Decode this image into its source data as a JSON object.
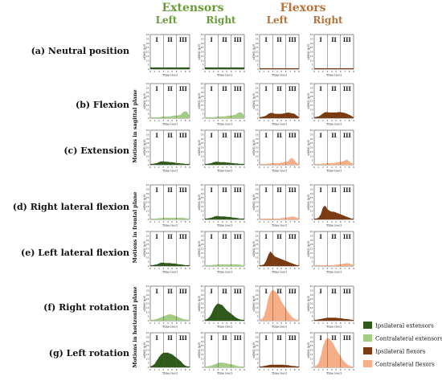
{
  "header": {
    "extensors": "Extensors",
    "flexors": "Flexors",
    "ext_color": "#6a9a3a",
    "flex_color": "#b5733a",
    "columns": [
      "Left",
      "Right",
      "Left",
      "Right"
    ]
  },
  "planes": [
    "Motions in sagittal plane",
    "Motions in frontal plane",
    "Motions in horizontal plane"
  ],
  "rows": [
    "(a) Neutral position",
    "(b) Flexion",
    "(c) Extension",
    "(d) Right lateral flexion",
    "(e) Left lateral flexion",
    "(f) Right rotation",
    "(g) Left rotation"
  ],
  "legend": [
    {
      "label": "Ipsilateral extensors",
      "color": "#2f5a1c"
    },
    {
      "label": "Contralateral extensors",
      "color": "#a3cc84"
    },
    {
      "label": "Ipsilateral flexors",
      "color": "#7a3a12"
    },
    {
      "label": "Contralateral flexors",
      "color": "#f5ae88"
    }
  ],
  "chart_data": {
    "type": "area",
    "ylabel": "sEMG (μV)",
    "xlabel": "Time (sec)",
    "ylim": [
      0,
      40
    ],
    "xlim": [
      0,
      9
    ],
    "x_ticks": [
      "0",
      "1",
      "2",
      "3",
      "4",
      "5",
      "6",
      "7",
      "8",
      "9"
    ],
    "y_ticks": [
      "40",
      "35",
      "30",
      "25",
      "20",
      "15",
      "10",
      "5",
      "0"
    ],
    "phases": [
      "I",
      "II",
      "III"
    ],
    "phase_bounds": [
      3,
      6
    ],
    "x": [
      0,
      0.5,
      1,
      1.5,
      2,
      2.5,
      3,
      3.5,
      4,
      4.5,
      5,
      5.5,
      6,
      6.5,
      7,
      7.5,
      8,
      8.5,
      9
    ],
    "panels": [
      {
        "row": 0,
        "col": 0,
        "kind": "ie",
        "values": [
          2,
          2,
          2,
          2,
          2,
          2,
          2,
          2,
          2,
          2,
          2,
          2,
          2,
          2,
          2,
          2,
          2,
          2,
          2
        ]
      },
      {
        "row": 0,
        "col": 1,
        "kind": "ie",
        "values": [
          2,
          2,
          2,
          2,
          2,
          2,
          2,
          2,
          2,
          2,
          2,
          2,
          2,
          2,
          2,
          2,
          2,
          2,
          2
        ]
      },
      {
        "row": 0,
        "col": 2,
        "kind": "if",
        "values": [
          1,
          1,
          1,
          1,
          1,
          1,
          1,
          1,
          1,
          1,
          1,
          1,
          1,
          1,
          1,
          1,
          1,
          1,
          1
        ]
      },
      {
        "row": 0,
        "col": 3,
        "kind": "if",
        "values": [
          1,
          1,
          1,
          1,
          1,
          1,
          1,
          1,
          1,
          1,
          1,
          1,
          1,
          1,
          1,
          1,
          1,
          1,
          1
        ]
      },
      {
        "row": 1,
        "col": 0,
        "kind": "ce",
        "values": [
          1,
          1,
          1,
          1,
          1,
          1.5,
          2,
          2,
          2,
          2,
          2.5,
          3,
          3,
          3.5,
          4,
          7,
          8,
          7,
          2
        ]
      },
      {
        "row": 1,
        "col": 1,
        "kind": "ce",
        "values": [
          1,
          1,
          1,
          1,
          1,
          1.5,
          2,
          2,
          2,
          2,
          2.5,
          3,
          3,
          3.5,
          4,
          6,
          7,
          6,
          2
        ]
      },
      {
        "row": 1,
        "col": 2,
        "kind": "if",
        "values": [
          1,
          1.5,
          2,
          3,
          5,
          6,
          6,
          5,
          5,
          5,
          5,
          5.5,
          6,
          6.5,
          6,
          5.5,
          5,
          3,
          1
        ]
      },
      {
        "row": 1,
        "col": 3,
        "kind": "if",
        "values": [
          1,
          1.5,
          2,
          3.5,
          5.5,
          7,
          7,
          6.5,
          6.5,
          6.5,
          6.5,
          7,
          7,
          6.5,
          6,
          5,
          4,
          2.5,
          1
        ]
      },
      {
        "row": 2,
        "col": 0,
        "kind": "ie",
        "values": [
          1,
          1,
          1.5,
          2,
          3,
          4,
          4,
          3.5,
          3.5,
          3,
          3,
          2.5,
          2,
          2,
          1.5,
          1.5,
          1,
          1,
          1
        ]
      },
      {
        "row": 2,
        "col": 1,
        "kind": "ie",
        "values": [
          1,
          1,
          1.5,
          2,
          3,
          3.5,
          3.5,
          3,
          3,
          3,
          2.5,
          2.5,
          2,
          2,
          1.5,
          1.5,
          1,
          1,
          1
        ]
      },
      {
        "row": 2,
        "col": 2,
        "kind": "cf",
        "values": [
          1,
          1,
          1,
          1,
          1.5,
          1.5,
          2,
          2,
          2,
          2,
          2.5,
          3,
          3.5,
          4,
          7,
          8,
          5,
          2,
          1
        ]
      },
      {
        "row": 2,
        "col": 3,
        "kind": "cf",
        "values": [
          1,
          1,
          1,
          1,
          1.5,
          1.5,
          2,
          2,
          2,
          2,
          2.5,
          3,
          3.5,
          4,
          5,
          6,
          4,
          2,
          1
        ]
      },
      {
        "row": 3,
        "col": 0,
        "kind": "ce",
        "values": [
          1,
          1,
          1,
          1,
          1.5,
          1.5,
          2,
          2,
          2,
          2,
          2,
          2,
          2,
          2,
          2,
          2,
          1.5,
          1,
          1
        ]
      },
      {
        "row": 3,
        "col": 1,
        "kind": "ie",
        "values": [
          1,
          1,
          1.5,
          2,
          3,
          4,
          4,
          3.5,
          3.5,
          3.5,
          3,
          3,
          2.5,
          2,
          2,
          1.5,
          1,
          1,
          1
        ]
      },
      {
        "row": 3,
        "col": 2,
        "kind": "cf",
        "values": [
          1,
          1,
          1,
          1,
          1,
          1,
          1,
          1,
          1,
          1,
          1.5,
          2,
          2,
          2.5,
          3,
          3.5,
          3,
          2,
          1
        ]
      },
      {
        "row": 3,
        "col": 3,
        "kind": "if",
        "values": [
          1,
          1,
          2,
          6,
          14,
          16,
          12,
          10,
          9,
          9,
          8,
          7,
          6,
          5,
          4,
          3,
          2,
          1,
          1
        ]
      },
      {
        "row": 4,
        "col": 0,
        "kind": "ie",
        "values": [
          1,
          1,
          1.5,
          2,
          3,
          4,
          4,
          3.5,
          3.5,
          3.5,
          3,
          3,
          2.5,
          2,
          2,
          1.5,
          1,
          1,
          1
        ]
      },
      {
        "row": 4,
        "col": 1,
        "kind": "ce",
        "values": [
          1,
          1,
          1,
          1,
          1.5,
          1.5,
          2,
          2,
          2,
          2,
          2,
          2,
          2,
          2,
          2,
          2,
          1.5,
          1,
          1
        ]
      },
      {
        "row": 4,
        "col": 2,
        "kind": "if",
        "values": [
          1,
          1,
          2,
          6,
          13,
          17,
          14,
          11,
          10,
          9,
          8,
          7,
          6,
          5,
          4,
          3,
          2,
          1,
          1
        ]
      },
      {
        "row": 4,
        "col": 3,
        "kind": "cf",
        "values": [
          1,
          1,
          1,
          1,
          1,
          1,
          1,
          1,
          1,
          1,
          1.5,
          2,
          2,
          2.5,
          3,
          3.5,
          3,
          2,
          1
        ]
      },
      {
        "row": 5,
        "col": 0,
        "kind": "ce",
        "values": [
          1,
          1,
          1.5,
          2,
          3,
          4,
          5,
          6,
          7,
          7.5,
          7,
          6,
          5,
          4,
          3,
          2,
          1.5,
          1,
          1
        ]
      },
      {
        "row": 5,
        "col": 1,
        "kind": "ie",
        "values": [
          1,
          2,
          4,
          8,
          14,
          18,
          20,
          19,
          18,
          15,
          12,
          10,
          8,
          6,
          4,
          2.5,
          1.5,
          1,
          1
        ]
      },
      {
        "row": 5,
        "col": 2,
        "kind": "cf",
        "values": [
          1,
          2,
          5,
          14,
          26,
          33,
          36,
          34,
          32,
          28,
          22,
          18,
          14,
          10,
          7,
          4,
          2,
          1,
          1
        ]
      },
      {
        "row": 5,
        "col": 3,
        "kind": "if",
        "values": [
          1,
          1,
          1.5,
          2,
          2.5,
          3,
          3.5,
          3.5,
          3.5,
          3.5,
          3.5,
          3,
          3,
          2.5,
          2,
          2,
          1.5,
          1,
          1
        ]
      },
      {
        "row": 6,
        "col": 0,
        "kind": "ie",
        "values": [
          1,
          2,
          4,
          8,
          12,
          15,
          17,
          17,
          17,
          16,
          15,
          13,
          11,
          9,
          7,
          4,
          2,
          1,
          1
        ]
      },
      {
        "row": 6,
        "col": 1,
        "kind": "ce",
        "values": [
          1,
          1,
          1.5,
          2,
          3,
          4,
          5,
          5.5,
          5.5,
          5,
          4.5,
          4,
          3.5,
          3,
          2,
          1.5,
          1,
          1,
          1
        ]
      },
      {
        "row": 6,
        "col": 2,
        "kind": "if",
        "values": [
          1,
          1,
          1.5,
          2,
          2.5,
          3,
          3,
          3,
          3,
          3,
          3,
          3,
          2.5,
          2.5,
          2,
          1.5,
          1.5,
          1,
          1
        ]
      },
      {
        "row": 6,
        "col": 3,
        "kind": "cf",
        "values": [
          1,
          2,
          5,
          13,
          24,
          31,
          34,
          33,
          30,
          26,
          21,
          17,
          13,
          9,
          6,
          3.5,
          2,
          1,
          1
        ]
      }
    ]
  }
}
